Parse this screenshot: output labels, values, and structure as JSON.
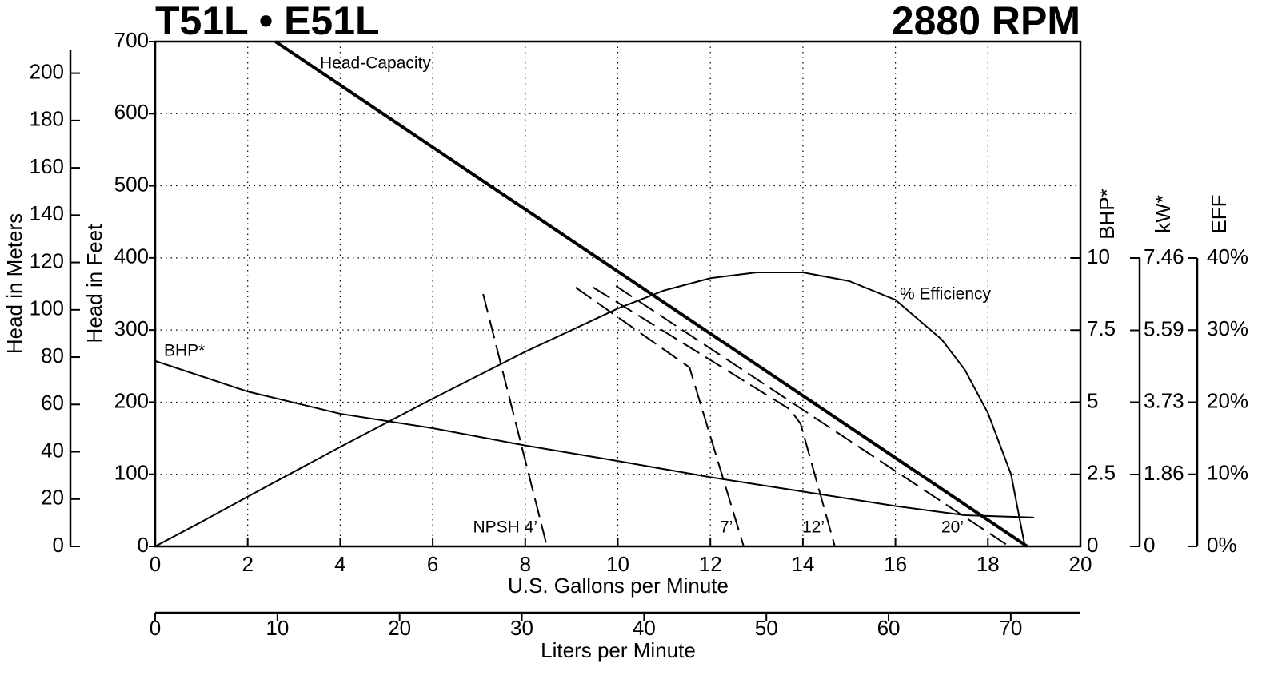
{
  "chart_data": {
    "type": "line",
    "title": "T51L • E51L",
    "subtitle": "2880 RPM",
    "xlabel": "U.S. Gallons per Minute",
    "xlim": [
      0,
      20
    ],
    "xticks": [
      0,
      2,
      4,
      6,
      8,
      10,
      12,
      14,
      16,
      18,
      20
    ],
    "x2label": "Liters per Minute",
    "x2lim": [
      0,
      75.7
    ],
    "x2ticks": [
      0,
      10,
      20,
      30,
      40,
      50,
      60,
      70
    ],
    "ylabel": "Head in Feet",
    "ylim": [
      0,
      700
    ],
    "yticks": [
      0,
      100,
      200,
      300,
      400,
      500,
      600,
      700
    ],
    "y_meters_label": "Head in Meters",
    "y_meters_lim": [
      0,
      210
    ],
    "y_meters_ticks": [
      0,
      20,
      40,
      60,
      80,
      100,
      120,
      140,
      160,
      180,
      200
    ],
    "y2label": "BHP*",
    "y2lim": [
      0,
      10
    ],
    "y2ticks": [
      0,
      2.5,
      5,
      7.5,
      10
    ],
    "y3label": "kW*",
    "y3lim": [
      0,
      7.46
    ],
    "y3ticks": [
      0,
      1.86,
      3.73,
      5.59,
      7.46
    ],
    "y4label": "EFF",
    "y4lim": [
      0,
      40
    ],
    "y4ticks": [
      {
        "value": 0,
        "label": "0%"
      },
      {
        "value": 10,
        "label": "10%"
      },
      {
        "value": 20,
        "label": "20%"
      },
      {
        "value": 30,
        "label": "30%"
      },
      {
        "value": 40,
        "label": "40%"
      }
    ],
    "grid": true,
    "series": [
      {
        "name": "Head-Capacity",
        "color": "#000000",
        "style": "bold",
        "axis": "y",
        "x": [
          2.6,
          18.85
        ],
        "values": [
          700,
          0
        ]
      },
      {
        "name": "% Efficiency",
        "color": "#000000",
        "style": "solid",
        "axis": "y4",
        "x": [
          0,
          1,
          2,
          4,
          6,
          8,
          10,
          11,
          12,
          13,
          14,
          15,
          16,
          17,
          17.5,
          18,
          18.5,
          18.8
        ],
        "values": [
          0,
          3.4,
          6.9,
          13.8,
          20.5,
          27,
          33,
          35.5,
          37.2,
          38,
          38,
          36.8,
          34.2,
          28.7,
          24.5,
          18.5,
          10,
          0
        ]
      },
      {
        "name": "BHP*",
        "color": "#000000",
        "style": "solid",
        "axis": "y2",
        "x": [
          0,
          2,
          4,
          6,
          8,
          10,
          12,
          14,
          16,
          17.5,
          19
        ],
        "values": [
          6.43,
          5.37,
          4.6,
          4.1,
          3.5,
          2.96,
          2.4,
          1.9,
          1.4,
          1.08,
          1.0
        ]
      },
      {
        "name": "NPSH 4’",
        "color": "#000000",
        "style": "dashed",
        "axis": "y",
        "x": [
          7.09,
          8.47
        ],
        "values": [
          350,
          0
        ]
      },
      {
        "name": "7’",
        "color": "#000000",
        "style": "dashed",
        "axis": "y",
        "x": [
          9.09,
          11.55,
          12.72
        ],
        "values": [
          359,
          248,
          0
        ]
      },
      {
        "name": "12’",
        "color": "#000000",
        "style": "dashed",
        "axis": "y",
        "x": [
          9.47,
          13.72,
          13.95,
          14.69
        ],
        "values": [
          359,
          190,
          170,
          0
        ]
      },
      {
        "name": "20’",
        "color": "#000000",
        "style": "dashed",
        "axis": "y",
        "x": [
          9.96,
          18.46
        ],
        "values": [
          361,
          0
        ]
      }
    ]
  }
}
